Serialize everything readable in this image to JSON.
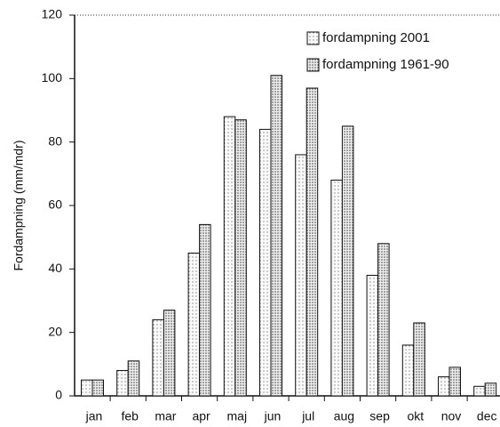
{
  "chart_data": {
    "type": "bar",
    "y_label": "Fordampning (mm/mdr)",
    "categories": [
      "jan",
      "feb",
      "mar",
      "apr",
      "maj",
      "jun",
      "jul",
      "aug",
      "sep",
      "okt",
      "nov",
      "dec"
    ],
    "series": [
      {
        "name": "fordampning 2001",
        "color": "#f0f0f0",
        "values": [
          5,
          8,
          24,
          45,
          88,
          84,
          76,
          68,
          38,
          16,
          6,
          3
        ]
      },
      {
        "name": "fordampning 1961-90",
        "color": "#c8c8c8",
        "values": [
          5,
          11,
          27,
          54,
          87,
          101,
          97,
          85,
          48,
          23,
          9,
          4
        ]
      }
    ],
    "ylim": [
      0,
      120
    ],
    "yticks": [
      0,
      20,
      40,
      60,
      80,
      100,
      120
    ],
    "legend": "top-right"
  }
}
